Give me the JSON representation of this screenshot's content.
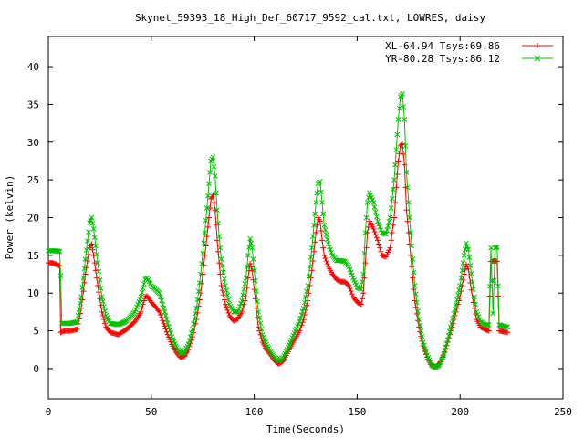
{
  "chart_data": {
    "type": "line",
    "title": "Skynet_59393_18_High_Def_60717_9592_cal.txt, LOWRES, daisy",
    "xlabel": "Time(Seconds)",
    "ylabel": "Power (kelvin)",
    "xlim": [
      0,
      250
    ],
    "ylim": [
      -4,
      44
    ],
    "xticks": [
      0,
      50,
      100,
      150,
      200,
      250
    ],
    "yticks": [
      0,
      5,
      10,
      15,
      20,
      25,
      30,
      35,
      40
    ],
    "grid": false,
    "legend_position": "top-right",
    "series": [
      {
        "name": "XL-64.94 Tsys:69.86",
        "color": "#ff0000",
        "marker": "plus",
        "points": [
          [
            0,
            14
          ],
          [
            2,
            14
          ],
          [
            4,
            13.8
          ],
          [
            5.5,
            13.6
          ],
          [
            6,
            4.8
          ],
          [
            8,
            5
          ],
          [
            11,
            5
          ],
          [
            14,
            5.2
          ],
          [
            16,
            8
          ],
          [
            18,
            12.5
          ],
          [
            20,
            16
          ],
          [
            21,
            16.5
          ],
          [
            22,
            15
          ],
          [
            24,
            11
          ],
          [
            26,
            7.5
          ],
          [
            28,
            5.5
          ],
          [
            30,
            4.8
          ],
          [
            34,
            4.5
          ],
          [
            38,
            5.2
          ],
          [
            42,
            6.2
          ],
          [
            45,
            7.5
          ],
          [
            47,
            9.5
          ],
          [
            48,
            9.6
          ],
          [
            50,
            8.8
          ],
          [
            52,
            8.2
          ],
          [
            54,
            7.5
          ],
          [
            56,
            6
          ],
          [
            58,
            4.5
          ],
          [
            60,
            3.2
          ],
          [
            62,
            2.2
          ],
          [
            64,
            1.5
          ],
          [
            66,
            1.6
          ],
          [
            68,
            2.5
          ],
          [
            70,
            4.2
          ],
          [
            72,
            6.5
          ],
          [
            74,
            10
          ],
          [
            76,
            15
          ],
          [
            78,
            20
          ],
          [
            79,
            22.5
          ],
          [
            80,
            23
          ],
          [
            81,
            21
          ],
          [
            82,
            17
          ],
          [
            83,
            14
          ],
          [
            84,
            11
          ],
          [
            86,
            8.5
          ],
          [
            88,
            7
          ],
          [
            90,
            6.3
          ],
          [
            92,
            6.6
          ],
          [
            94,
            7.5
          ],
          [
            96,
            9.5
          ],
          [
            97,
            12
          ],
          [
            98,
            13.9
          ],
          [
            99,
            13
          ],
          [
            100,
            10.5
          ],
          [
            102,
            5.5
          ],
          [
            104,
            3.5
          ],
          [
            106,
            2.5
          ],
          [
            108,
            1.8
          ],
          [
            110,
            1
          ],
          [
            112,
            0.6
          ],
          [
            114,
            1
          ],
          [
            116,
            2
          ],
          [
            118,
            3
          ],
          [
            120,
            4
          ],
          [
            122,
            5
          ],
          [
            124,
            6.5
          ],
          [
            126,
            9
          ],
          [
            128,
            13
          ],
          [
            130,
            18
          ],
          [
            131,
            20
          ],
          [
            132,
            19.5
          ],
          [
            133,
            17
          ],
          [
            134,
            15
          ],
          [
            136,
            13.5
          ],
          [
            138,
            12.5
          ],
          [
            140,
            11.8
          ],
          [
            142,
            11.5
          ],
          [
            144,
            11.5
          ],
          [
            146,
            11
          ],
          [
            148,
            9.5
          ],
          [
            150,
            8.8
          ],
          [
            152,
            8.5
          ],
          [
            153,
            10
          ],
          [
            154,
            14
          ],
          [
            155,
            18
          ],
          [
            156,
            19.5
          ],
          [
            158,
            18.5
          ],
          [
            160,
            17
          ],
          [
            162,
            15
          ],
          [
            164,
            14.8
          ],
          [
            166,
            16
          ],
          [
            168,
            20
          ],
          [
            169,
            24
          ],
          [
            170,
            27.5
          ],
          [
            171,
            29.5
          ],
          [
            172,
            29.8
          ],
          [
            173,
            27
          ],
          [
            174,
            21
          ],
          [
            176,
            15
          ],
          [
            178,
            9
          ],
          [
            180,
            5.5
          ],
          [
            182,
            3
          ],
          [
            184,
            1.5
          ],
          [
            186,
            0.5
          ],
          [
            188,
            0.2
          ],
          [
            190,
            0.6
          ],
          [
            192,
            1.8
          ],
          [
            194,
            3.5
          ],
          [
            196,
            5.5
          ],
          [
            198,
            7.5
          ],
          [
            200,
            9.5
          ],
          [
            202,
            12.5
          ],
          [
            203,
            13.8
          ],
          [
            204,
            13.2
          ],
          [
            206,
            9.5
          ],
          [
            208,
            6.5
          ],
          [
            210,
            5.5
          ],
          [
            212,
            5.2
          ],
          [
            214,
            5
          ],
          [
            215,
            14.2
          ],
          [
            217,
            14.3
          ],
          [
            218,
            14.2
          ],
          [
            219,
            5
          ],
          [
            221,
            4.9
          ],
          [
            223,
            4.8
          ]
        ]
      },
      {
        "name": "YR-80.28 Tsys:86.12",
        "color": "#00c000",
        "marker": "cross",
        "points": [
          [
            0,
            15.6
          ],
          [
            2,
            15.6
          ],
          [
            4,
            15.6
          ],
          [
            5.5,
            15.5
          ],
          [
            6,
            12.3
          ],
          [
            6.5,
            6
          ],
          [
            8,
            6
          ],
          [
            11,
            6
          ],
          [
            14,
            6.2
          ],
          [
            16,
            9.5
          ],
          [
            18,
            14.5
          ],
          [
            20,
            19.3
          ],
          [
            21,
            20
          ],
          [
            22,
            18.5
          ],
          [
            24,
            14
          ],
          [
            26,
            9.5
          ],
          [
            28,
            7
          ],
          [
            30,
            6
          ],
          [
            34,
            5.8
          ],
          [
            38,
            6.3
          ],
          [
            42,
            7.5
          ],
          [
            45,
            9.5
          ],
          [
            47,
            11.8
          ],
          [
            48,
            12
          ],
          [
            50,
            11
          ],
          [
            52,
            10.5
          ],
          [
            54,
            10
          ],
          [
            56,
            8
          ],
          [
            58,
            6
          ],
          [
            60,
            4.2
          ],
          [
            62,
            3
          ],
          [
            64,
            2
          ],
          [
            66,
            2.2
          ],
          [
            68,
            3.2
          ],
          [
            70,
            5.2
          ],
          [
            72,
            8
          ],
          [
            74,
            12.5
          ],
          [
            76,
            18
          ],
          [
            78,
            24.5
          ],
          [
            79,
            27.5
          ],
          [
            80,
            28
          ],
          [
            81,
            25.5
          ],
          [
            82,
            21
          ],
          [
            83,
            17.5
          ],
          [
            84,
            14.5
          ],
          [
            86,
            11
          ],
          [
            88,
            8.5
          ],
          [
            90,
            7.5
          ],
          [
            92,
            7.5
          ],
          [
            94,
            9
          ],
          [
            96,
            12
          ],
          [
            97,
            15
          ],
          [
            98,
            17.2
          ],
          [
            99,
            16
          ],
          [
            100,
            13
          ],
          [
            102,
            7.5
          ],
          [
            104,
            4.5
          ],
          [
            106,
            3.2
          ],
          [
            108,
            2.2
          ],
          [
            110,
            1.5
          ],
          [
            112,
            1
          ],
          [
            114,
            1.5
          ],
          [
            116,
            2.5
          ],
          [
            118,
            3.8
          ],
          [
            120,
            5
          ],
          [
            122,
            6.2
          ],
          [
            124,
            8
          ],
          [
            126,
            11
          ],
          [
            128,
            16
          ],
          [
            130,
            22
          ],
          [
            131,
            24.5
          ],
          [
            132,
            24.8
          ],
          [
            133,
            22
          ],
          [
            134,
            19
          ],
          [
            136,
            16.5
          ],
          [
            138,
            15
          ],
          [
            140,
            14.3
          ],
          [
            142,
            14.3
          ],
          [
            144,
            14.2
          ],
          [
            146,
            13.5
          ],
          [
            148,
            12
          ],
          [
            150,
            10.8
          ],
          [
            152,
            10.5
          ],
          [
            153,
            12.5
          ],
          [
            154,
            18
          ],
          [
            155,
            22
          ],
          [
            156,
            23.3
          ],
          [
            158,
            22
          ],
          [
            160,
            19.5
          ],
          [
            162,
            18
          ],
          [
            164,
            17.8
          ],
          [
            166,
            20
          ],
          [
            168,
            25
          ],
          [
            169,
            29
          ],
          [
            170,
            33
          ],
          [
            171,
            36
          ],
          [
            172,
            36.4
          ],
          [
            173,
            33
          ],
          [
            174,
            26
          ],
          [
            176,
            18
          ],
          [
            178,
            11
          ],
          [
            180,
            6.5
          ],
          [
            182,
            3.5
          ],
          [
            184,
            1.8
          ],
          [
            186,
            0.5
          ],
          [
            188,
            0.1
          ],
          [
            190,
            0.5
          ],
          [
            192,
            1.8
          ],
          [
            194,
            3.8
          ],
          [
            196,
            6
          ],
          [
            198,
            8.5
          ],
          [
            200,
            11
          ],
          [
            202,
            15
          ],
          [
            203,
            16.6
          ],
          [
            204,
            15.8
          ],
          [
            206,
            11.5
          ],
          [
            208,
            7.5
          ],
          [
            210,
            6.2
          ],
          [
            212,
            5.8
          ],
          [
            214,
            5.8
          ],
          [
            215,
            16
          ],
          [
            216,
            7.3
          ],
          [
            217,
            16
          ],
          [
            218,
            16.1
          ],
          [
            219,
            5.8
          ],
          [
            221,
            5.6
          ],
          [
            223,
            5.5
          ]
        ]
      }
    ]
  }
}
